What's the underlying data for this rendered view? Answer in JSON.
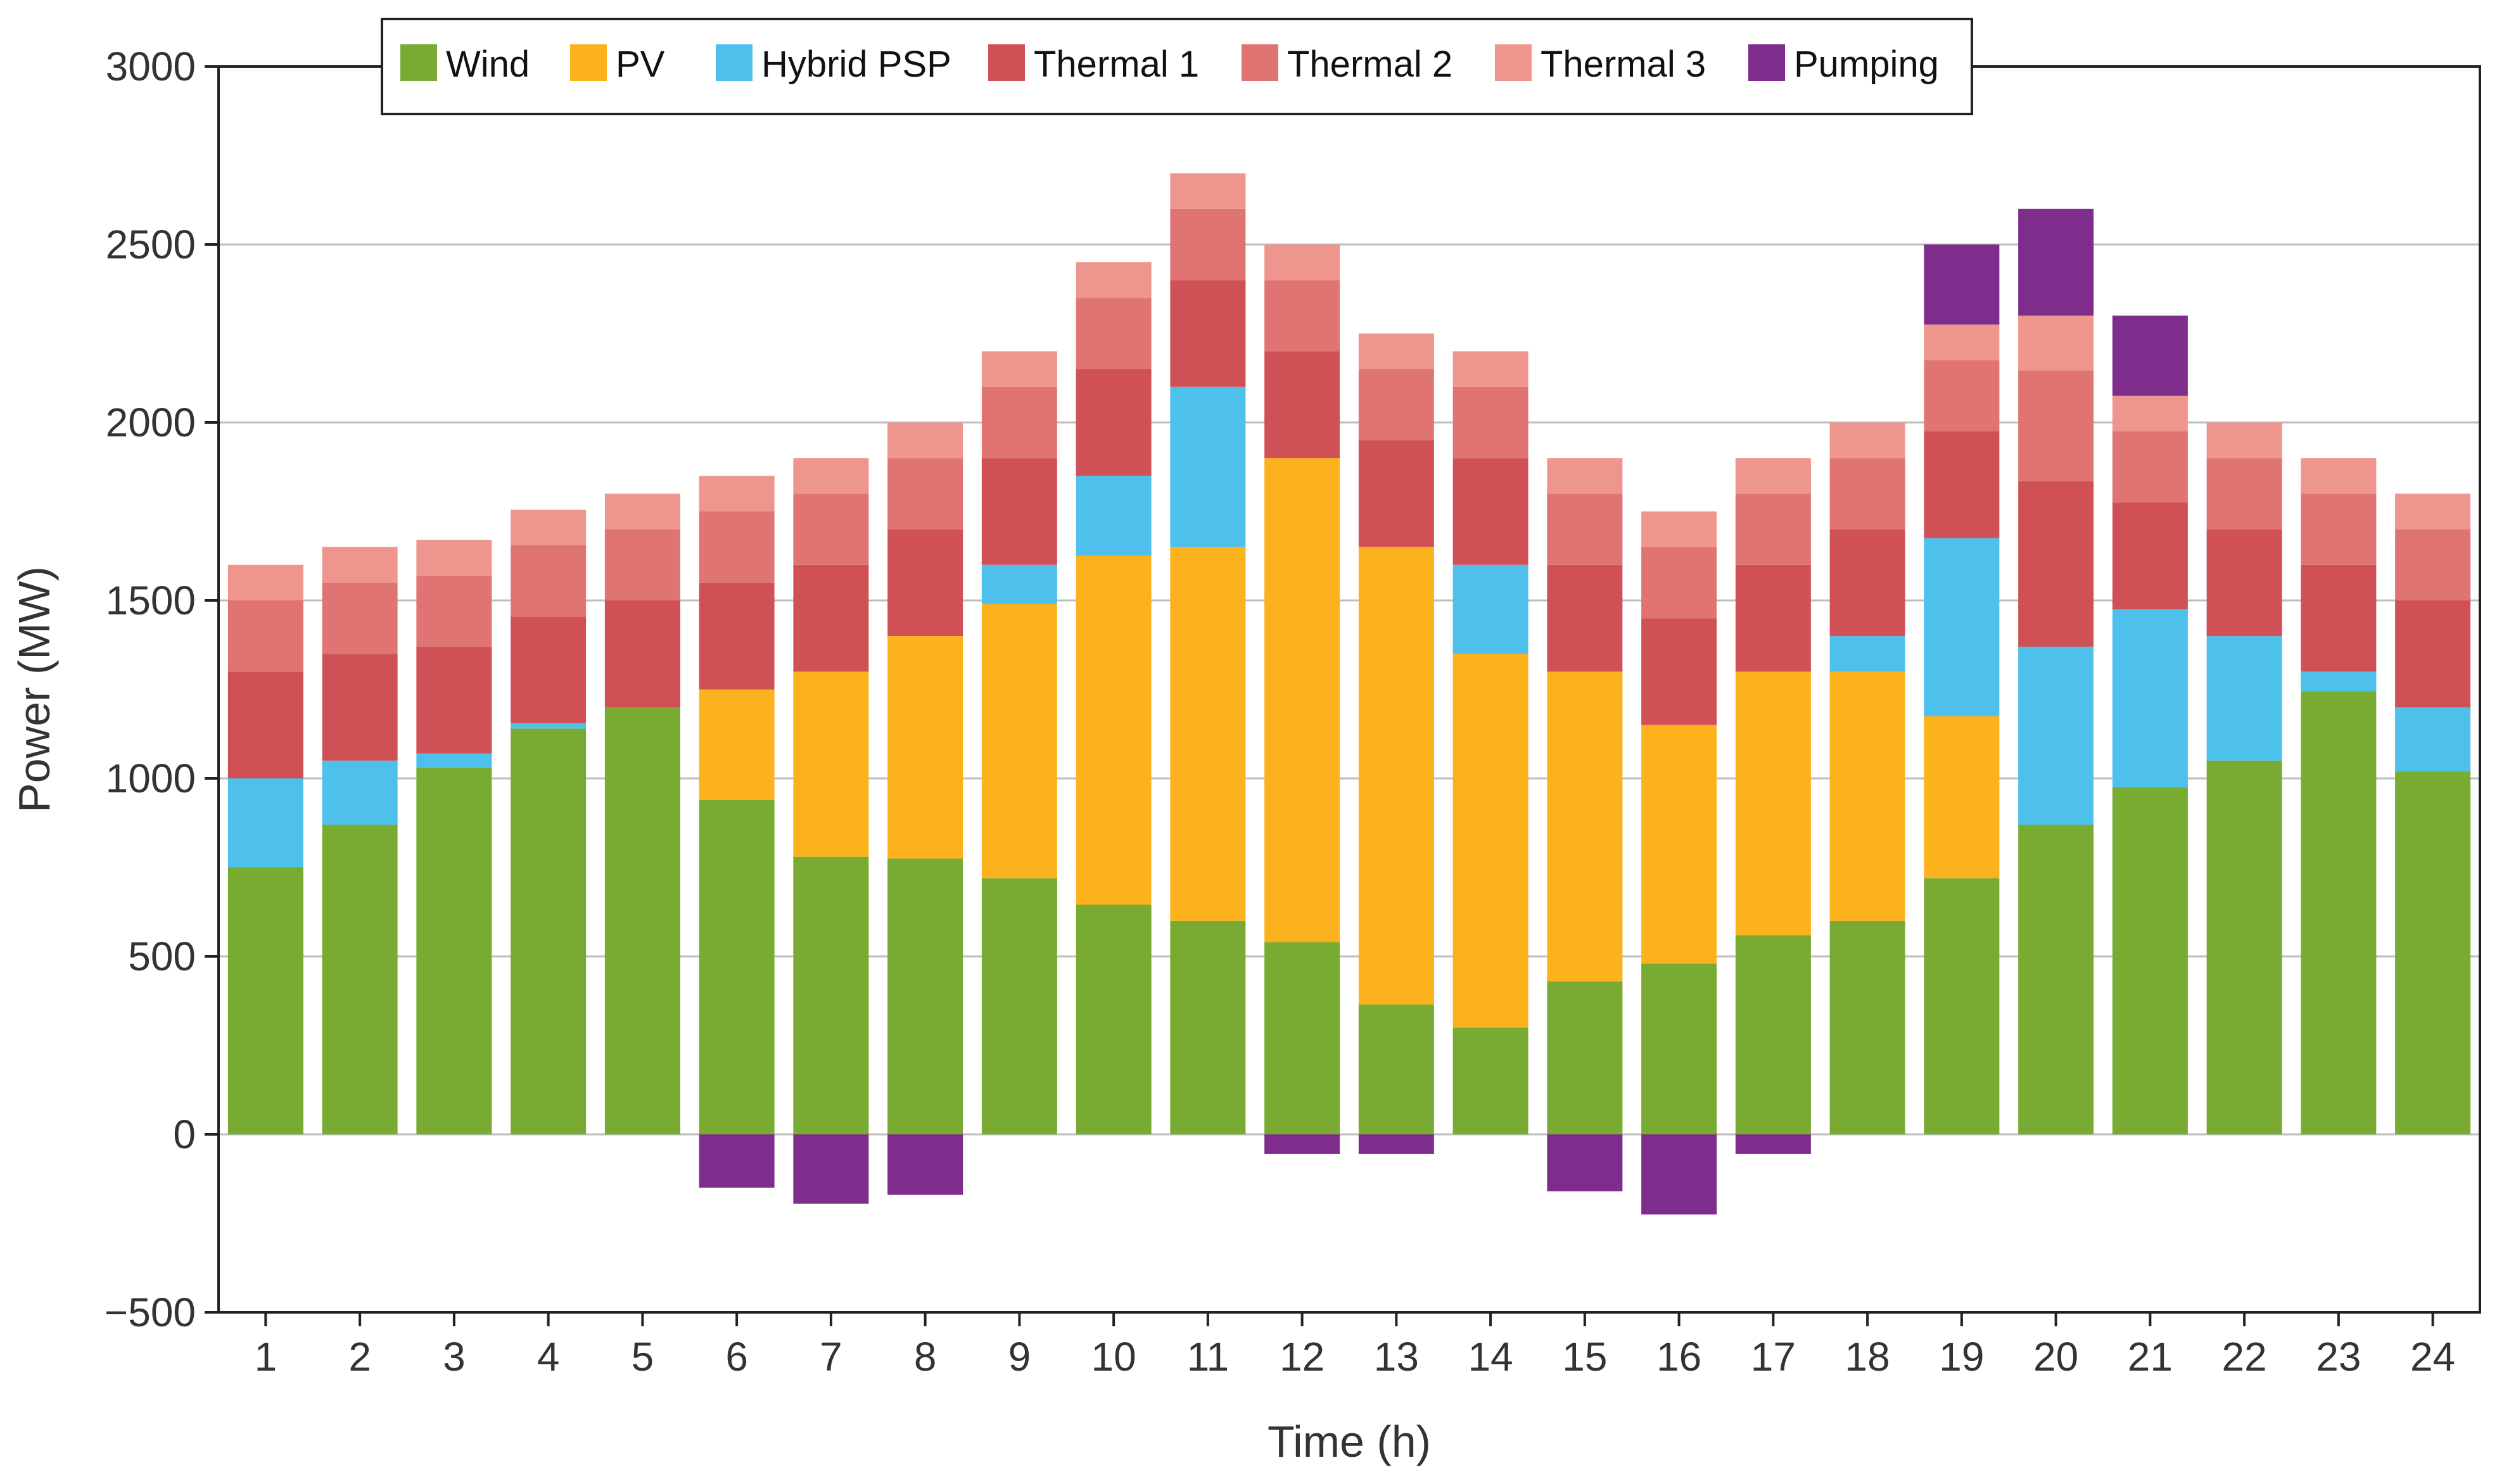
{
  "chart_data": {
    "type": "bar",
    "stacked": true,
    "title": "",
    "xlabel": "Time (h)",
    "ylabel": "Power (MW)",
    "ylim": [
      -500,
      3000
    ],
    "yticks": [
      -500,
      0,
      500,
      1000,
      1500,
      2000,
      2500,
      3000
    ],
    "grid": "horizontal",
    "legend_position": "top",
    "categories": [
      "1",
      "2",
      "3",
      "4",
      "5",
      "6",
      "7",
      "8",
      "9",
      "10",
      "11",
      "12",
      "13",
      "14",
      "15",
      "16",
      "17",
      "18",
      "19",
      "20",
      "21",
      "22",
      "23",
      "24"
    ],
    "series": [
      {
        "name": "Wind",
        "color": "#79AB32",
        "values": [
          750,
          870,
          1030,
          1140,
          1200,
          940,
          780,
          775,
          720,
          645,
          600,
          540,
          365,
          300,
          430,
          480,
          560,
          600,
          720,
          870,
          975,
          1050,
          1245,
          1020
        ]
      },
      {
        "name": "PV",
        "color": "#FCB21C",
        "values": [
          0,
          0,
          0,
          0,
          0,
          310,
          520,
          625,
          770,
          980,
          1050,
          1360,
          1285,
          1050,
          870,
          670,
          740,
          700,
          455,
          0,
          0,
          0,
          0,
          0
        ]
      },
      {
        "name": "Hybrid PSP",
        "color": "#4EC0EC",
        "values": [
          250,
          180,
          40,
          15,
          0,
          0,
          0,
          0,
          110,
          225,
          450,
          0,
          0,
          250,
          0,
          0,
          0,
          100,
          500,
          500,
          500,
          350,
          55,
          180
        ]
      },
      {
        "name": "Thermal 1",
        "color": "#D05155",
        "values": [
          300,
          300,
          300,
          300,
          300,
          300,
          300,
          300,
          300,
          300,
          300,
          300,
          300,
          300,
          300,
          300,
          300,
          300,
          300,
          465,
          300,
          300,
          300,
          300
        ]
      },
      {
        "name": "Thermal 2",
        "color": "#E07473",
        "values": [
          200,
          200,
          200,
          200,
          200,
          200,
          200,
          200,
          200,
          200,
          200,
          200,
          200,
          200,
          200,
          200,
          200,
          200,
          200,
          310,
          200,
          200,
          200,
          200
        ]
      },
      {
        "name": "Thermal 3",
        "color": "#EE958E",
        "values": [
          100,
          100,
          100,
          100,
          100,
          100,
          100,
          100,
          100,
          100,
          100,
          100,
          100,
          100,
          100,
          100,
          100,
          100,
          100,
          155,
          100,
          100,
          100,
          100
        ]
      },
      {
        "name": "Pumping",
        "color": "#7E2D8C",
        "values": [
          0,
          0,
          0,
          0,
          0,
          -150,
          -195,
          -170,
          0,
          0,
          0,
          -55,
          -55,
          0,
          -160,
          -225,
          -55,
          0,
          225,
          300,
          225,
          0,
          0,
          0
        ]
      }
    ]
  }
}
